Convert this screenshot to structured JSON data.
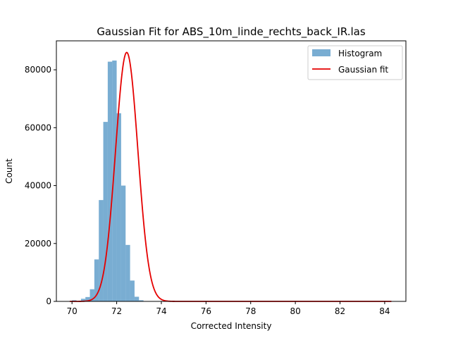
{
  "colors": {
    "histogram": "#1f77b4",
    "fit": "#e50000",
    "axis": "#000000",
    "background": "#ffffff"
  },
  "chart_data": {
    "type": "bar",
    "title": "Gaussian Fit for ABS_10m_linde_rechts_back_IR.las",
    "xlabel": "Corrected Intensity",
    "ylabel": "Count",
    "xlim": [
      69.3,
      84.95
    ],
    "ylim": [
      0,
      90000
    ],
    "xticks": [
      70,
      72,
      74,
      76,
      78,
      80,
      82,
      84
    ],
    "yticks": [
      0,
      20000,
      40000,
      60000,
      80000
    ],
    "grid": false,
    "legend": {
      "location": "top-right",
      "entries": [
        "Histogram",
        "Gaussian fit"
      ]
    },
    "series": [
      {
        "name": "Histogram",
        "kind": "histogram",
        "bin_width": 0.2,
        "bins": [
          {
            "x0": 70.0,
            "count": 400
          },
          {
            "x0": 70.4,
            "count": 900
          },
          {
            "x0": 70.6,
            "count": 1500
          },
          {
            "x0": 70.8,
            "count": 4200
          },
          {
            "x0": 71.0,
            "count": 14500
          },
          {
            "x0": 71.2,
            "count": 35000
          },
          {
            "x0": 71.4,
            "count": 62000
          },
          {
            "x0": 71.6,
            "count": 82800
          },
          {
            "x0": 71.8,
            "count": 83200
          },
          {
            "x0": 72.0,
            "count": 65000
          },
          {
            "x0": 72.2,
            "count": 40000
          },
          {
            "x0": 72.4,
            "count": 19500
          },
          {
            "x0": 72.6,
            "count": 7200
          },
          {
            "x0": 72.8,
            "count": 1600
          },
          {
            "x0": 73.0,
            "count": 400
          }
        ]
      },
      {
        "name": "Gaussian fit",
        "kind": "line",
        "amplitude": 86000,
        "mean": 72.45,
        "sigma": 0.5,
        "x_range": [
          69.9,
          84.3
        ]
      }
    ]
  }
}
